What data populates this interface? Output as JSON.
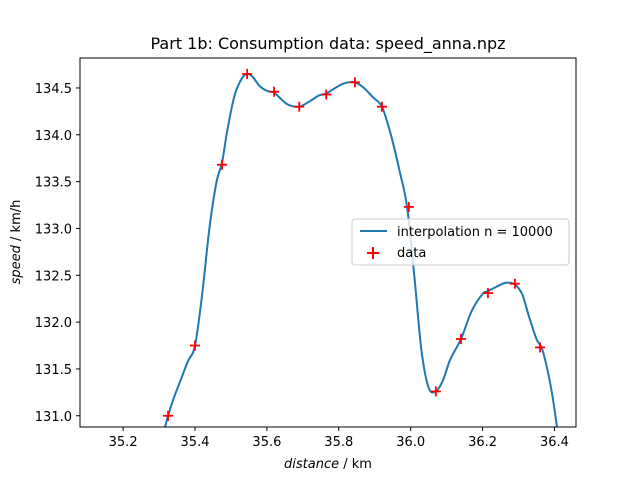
{
  "chart_data": {
    "type": "line",
    "title": "Part 1b: Consumption data: speed_anna.npz",
    "xlabel": "distance",
    "xlabel_unit": " / km",
    "ylabel": "speed",
    "ylabel_unit": " / km/h",
    "xlim": [
      35.08,
      36.46
    ],
    "ylim": [
      130.88,
      134.82
    ],
    "xticks": [
      35.2,
      35.4,
      35.6,
      35.8,
      36.0,
      36.2,
      36.4
    ],
    "xtick_labels": [
      "35.2",
      "35.4",
      "35.6",
      "35.8",
      "36.0",
      "36.2",
      "36.4"
    ],
    "yticks": [
      131.0,
      131.5,
      132.0,
      132.5,
      133.0,
      133.5,
      134.0,
      134.5
    ],
    "ytick_labels": [
      "131.0",
      "131.5",
      "132.0",
      "132.5",
      "133.0",
      "133.5",
      "134.0",
      "134.5"
    ],
    "grid": false,
    "legend_position": "center-right",
    "series": [
      {
        "name": "interpolation n = 10000",
        "kind": "line",
        "color": "#1f77b4",
        "x": [
          35.31,
          35.325,
          35.34,
          35.36,
          35.38,
          35.4,
          35.42,
          35.44,
          35.46,
          35.475,
          35.49,
          35.51,
          35.53,
          35.545,
          35.56,
          35.58,
          35.6,
          35.62,
          35.64,
          35.66,
          35.69,
          35.72,
          35.745,
          35.765,
          35.79,
          35.815,
          35.845,
          35.87,
          35.895,
          35.92,
          35.945,
          35.97,
          35.99,
          36.01,
          36.03,
          36.05,
          36.07,
          36.09,
          36.11,
          36.14,
          36.17,
          36.2,
          36.215,
          36.24,
          36.265,
          36.29,
          36.31,
          36.33,
          36.35,
          36.365,
          36.38,
          36.395,
          36.41
        ],
        "y": [
          130.78,
          131.0,
          131.18,
          131.38,
          131.58,
          131.75,
          132.3,
          133.0,
          133.5,
          133.7,
          134.05,
          134.42,
          134.6,
          134.65,
          134.62,
          134.52,
          134.47,
          134.45,
          134.38,
          134.32,
          134.3,
          134.36,
          134.42,
          134.44,
          134.5,
          134.55,
          134.56,
          134.5,
          134.4,
          134.3,
          134.0,
          133.6,
          133.23,
          132.5,
          131.7,
          131.3,
          131.26,
          131.38,
          131.6,
          131.82,
          132.12,
          132.3,
          132.33,
          132.38,
          132.42,
          132.4,
          132.3,
          132.05,
          131.82,
          131.72,
          131.5,
          131.2,
          130.8
        ]
      },
      {
        "name": "data",
        "kind": "scatter",
        "marker": "+",
        "color": "#ff0000",
        "x": [
          35.325,
          35.4,
          35.475,
          35.545,
          35.62,
          35.69,
          35.765,
          35.845,
          35.92,
          35.995,
          36.07,
          36.14,
          36.215,
          36.29,
          36.36
        ],
        "y": [
          131.0,
          131.75,
          133.68,
          134.65,
          134.46,
          134.3,
          134.43,
          134.56,
          134.3,
          133.23,
          131.26,
          131.82,
          132.31,
          132.41,
          131.73
        ]
      }
    ]
  }
}
